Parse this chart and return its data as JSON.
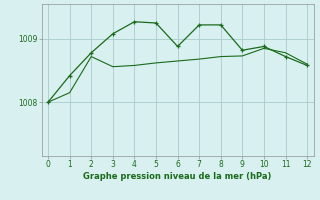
{
  "line1_x": [
    0,
    1,
    2,
    3,
    4,
    5,
    6,
    7,
    8,
    9,
    10,
    11,
    12
  ],
  "line1_y": [
    1008.0,
    1008.42,
    1008.78,
    1009.08,
    1009.27,
    1009.25,
    1008.88,
    1009.22,
    1009.22,
    1008.82,
    1008.88,
    1008.72,
    1008.58
  ],
  "line2_x": [
    0,
    1,
    2,
    3,
    4,
    5,
    6,
    7,
    8,
    9,
    10,
    11,
    12
  ],
  "line2_y": [
    1008.0,
    1008.15,
    1008.72,
    1008.56,
    1008.58,
    1008.62,
    1008.65,
    1008.68,
    1008.72,
    1008.73,
    1008.85,
    1008.78,
    1008.6
  ],
  "line_color": "#1a6b1a",
  "bg_color": "#d8f0f0",
  "grid_color": "#aacccc",
  "xlabel": "Graphe pression niveau de la mer (hPa)",
  "yticks": [
    1008,
    1009
  ],
  "xticks": [
    0,
    1,
    2,
    3,
    4,
    5,
    6,
    7,
    8,
    9,
    10,
    11,
    12
  ],
  "xlim": [
    -0.3,
    12.3
  ],
  "ylim": [
    1007.15,
    1009.55
  ],
  "figsize": [
    3.2,
    2.0
  ],
  "dpi": 100
}
